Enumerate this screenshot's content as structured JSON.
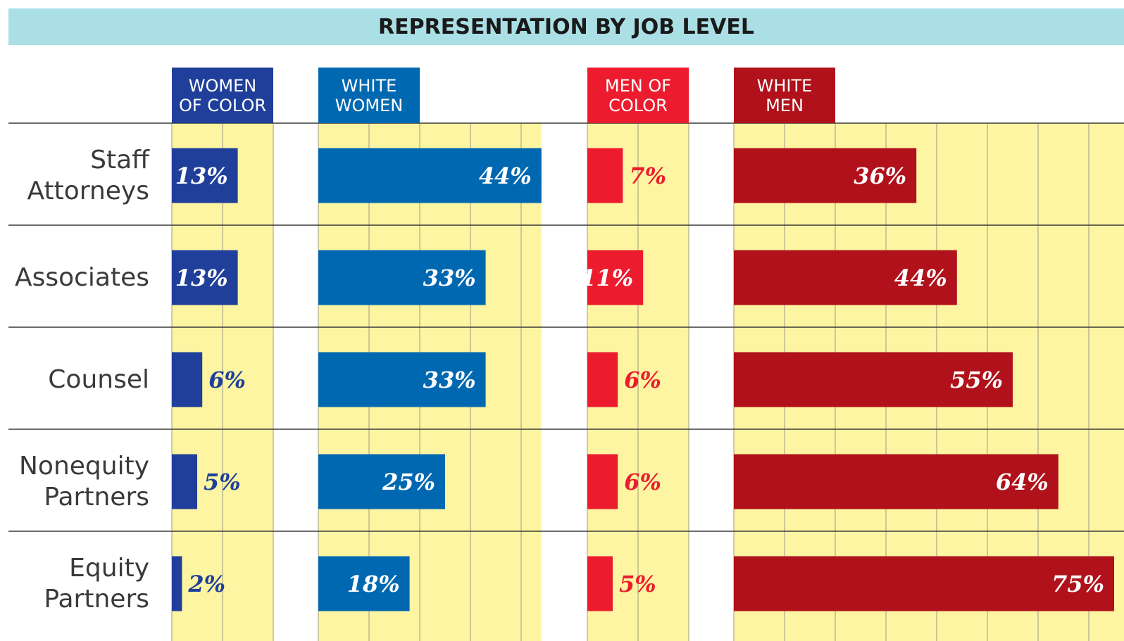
{
  "chart_data": {
    "type": "bar",
    "title": "REPRESENTATION BY JOB LEVEL",
    "categories": [
      "Staff\nAttorneys",
      "Associates",
      "Counsel",
      "Nonequity\nPartners",
      "Equity\nPartners"
    ],
    "series": [
      {
        "name": "WOMEN\nOF COLOR",
        "color": "#1f3f9a",
        "values": [
          13,
          13,
          6,
          5,
          2
        ],
        "value_labels": [
          "13%",
          "13%",
          "6%",
          "5%",
          "2%"
        ],
        "xlim": [
          0,
          20
        ],
        "xticks": [
          0,
          10,
          20
        ]
      },
      {
        "name": "WHITE\nWOMEN",
        "color": "#0068b1",
        "values": [
          44,
          33,
          33,
          25,
          18
        ],
        "value_labels": [
          "44%",
          "33%",
          "33%",
          "25%",
          "18%"
        ],
        "xlim": [
          0,
          44
        ],
        "xticks": [
          0,
          10,
          20,
          30,
          40
        ]
      },
      {
        "name": "MEN OF\nCOLOR",
        "color": "#ec1c2e",
        "values": [
          7,
          11,
          6,
          6,
          5
        ],
        "value_labels": [
          "7%",
          "11%",
          "6%",
          "6%",
          "5%"
        ],
        "xlim": [
          0,
          20
        ],
        "xticks": [
          0,
          10,
          20
        ]
      },
      {
        "name": "WHITE\nMEN",
        "color": "#b0111a",
        "values": [
          36,
          44,
          55,
          64,
          75
        ],
        "value_labels": [
          "36%",
          "44%",
          "55%",
          "64%",
          "75%"
        ],
        "xlim": [
          0,
          77
        ],
        "xticks": [
          0,
          10,
          20,
          30,
          40,
          50,
          60,
          70
        ]
      }
    ]
  }
}
